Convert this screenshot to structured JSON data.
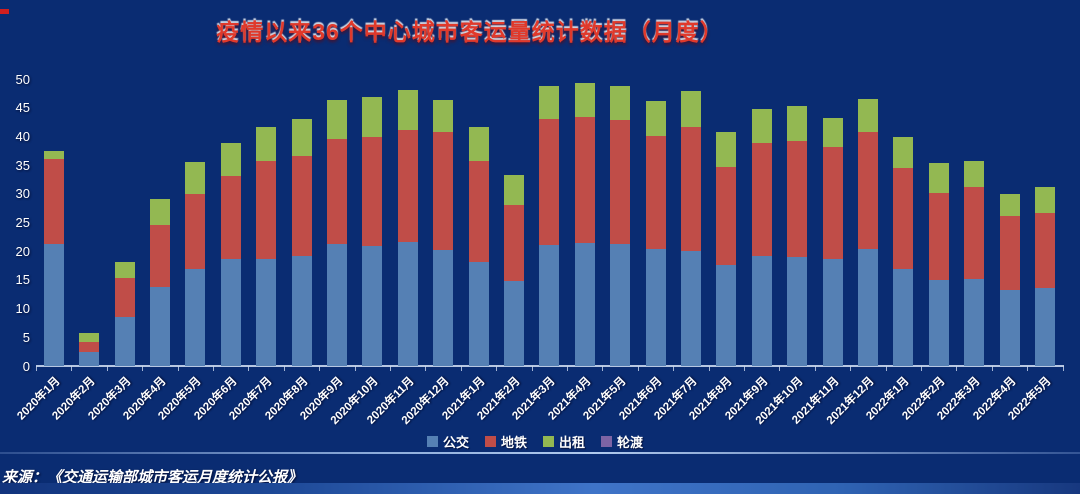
{
  "title": "疫情以来36个中心城市客运量统计数据（月度）",
  "source": "来源：《交通运输部城市客运月度统计公报》",
  "colors": {
    "background": "#0a2c72",
    "title_red": "#e0392b",
    "bus": "#5580b4",
    "metro": "#c04d48",
    "taxi": "#93b852",
    "ferry": "#7d64a5",
    "axis_text": "#ffffff",
    "axis_line": "#cad8ee"
  },
  "chart_data": {
    "type": "bar",
    "stacked": true,
    "title": "疫情以来36个中心城市客运量统计数据（月度）",
    "xlabel": "",
    "ylabel": "",
    "ylim": [
      0,
      50
    ],
    "yticks": [
      0,
      5,
      10,
      15,
      20,
      25,
      30,
      35,
      40,
      45,
      50
    ],
    "grid": false,
    "legend_position": "bottom",
    "categories": [
      "2020年1月",
      "2020年2月",
      "2020年3月",
      "2020年4月",
      "2020年5月",
      "2020年6月",
      "2020年7月",
      "2020年8月",
      "2020年9月",
      "2020年10月",
      "2020年11月",
      "2020年12月",
      "2021年1月",
      "2021年2月",
      "2021年3月",
      "2021年4月",
      "2021年5月",
      "2021年6月",
      "2021年7月",
      "2021年8月",
      "2021年9月",
      "2021年10月",
      "2021年11月",
      "2021年12月",
      "2022年1月",
      "2022年2月",
      "2022年3月",
      "2022年4月",
      "2022年5月"
    ],
    "series": [
      {
        "key": "bus",
        "name": "公交",
        "color": "#5580b4",
        "values": [
          21.4,
          2.6,
          8.7,
          13.8,
          17.0,
          18.7,
          18.8,
          19.2,
          21.3,
          21.0,
          21.7,
          20.3,
          18.2,
          14.9,
          21.1,
          21.6,
          21.4,
          20.5,
          20.1,
          17.6,
          19.3,
          19.0,
          18.7,
          20.4,
          16.9,
          15.0,
          15.3,
          13.4,
          13.7
        ]
      },
      {
        "key": "metro",
        "name": "地铁",
        "color": "#c04d48",
        "values": [
          14.7,
          1.7,
          6.8,
          10.8,
          13.1,
          14.5,
          17.0,
          17.5,
          18.4,
          18.9,
          19.5,
          20.6,
          17.6,
          13.2,
          22.1,
          21.8,
          21.6,
          19.6,
          21.6,
          17.2,
          19.7,
          20.3,
          19.5,
          20.5,
          17.6,
          15.2,
          16.0,
          12.8,
          13.1
        ]
      },
      {
        "key": "taxi",
        "name": "出租",
        "color": "#93b852",
        "values": [
          1.5,
          1.5,
          2.7,
          4.5,
          5.6,
          5.8,
          5.9,
          6.5,
          6.7,
          7.0,
          6.9,
          5.5,
          6.0,
          5.3,
          5.7,
          6.0,
          5.9,
          6.1,
          6.3,
          6.1,
          5.8,
          6.0,
          5.1,
          5.7,
          5.4,
          5.2,
          4.5,
          3.8,
          4.5
        ]
      },
      {
        "key": "ferry",
        "name": "轮渡",
        "color": "#7d64a5",
        "values": [
          0,
          0,
          0,
          0,
          0,
          0,
          0,
          0,
          0,
          0,
          0,
          0,
          0,
          0,
          0,
          0,
          0,
          0,
          0,
          0,
          0,
          0,
          0,
          0,
          0,
          0,
          0,
          0,
          0
        ]
      }
    ]
  }
}
